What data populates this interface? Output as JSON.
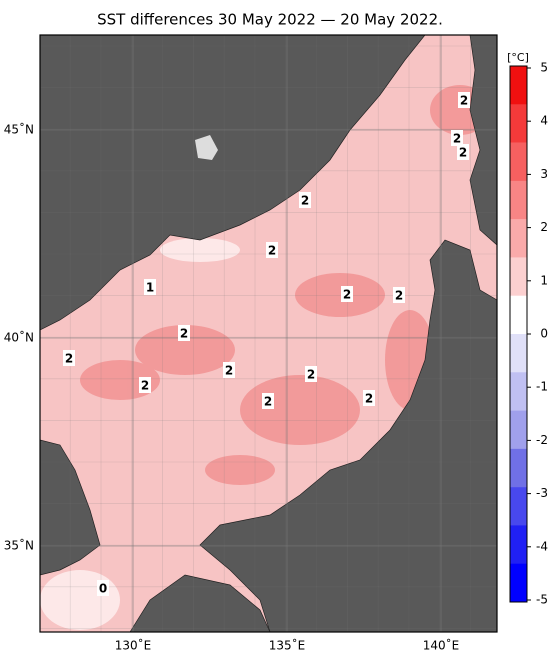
{
  "title": "SST differences 30 May 2022 — 20 May 2022.",
  "map": {
    "lat_labels": [
      {
        "value": 45,
        "label": "45˚N"
      },
      {
        "value": 40,
        "label": "40˚N"
      },
      {
        "value": 35,
        "label": "35˚N"
      }
    ],
    "lon_labels": [
      {
        "value": 130,
        "label": "130˚E"
      },
      {
        "value": 135,
        "label": "135˚E"
      },
      {
        "value": 140,
        "label": "140˚E"
      }
    ],
    "contour_labels": [
      "2",
      "2",
      "2",
      "2",
      "2",
      "2",
      "2",
      "2",
      "2",
      "2",
      "2",
      "2",
      "2",
      "2",
      "1",
      "0"
    ]
  },
  "colorbar": {
    "unit": "[°C]",
    "ticks": [
      5,
      4,
      3,
      2,
      1,
      0,
      -1,
      -2,
      -3,
      -4,
      -5
    ],
    "colors": [
      "#f01010",
      "#f43a3a",
      "#f66060",
      "#f88585",
      "#faaaaa",
      "#fcd0d0",
      "#ffffff",
      "#e0e0f8",
      "#c0c0f2",
      "#a0a0ec",
      "#7070e6",
      "#4848ee",
      "#2020f4",
      "#0000ff"
    ]
  }
}
